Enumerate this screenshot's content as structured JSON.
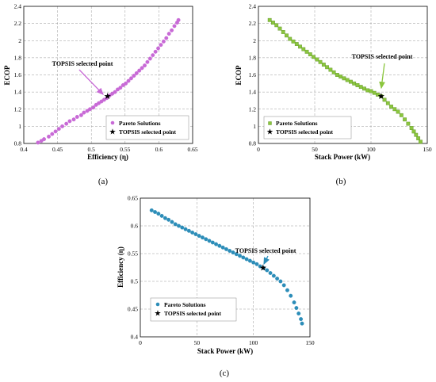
{
  "colors": {
    "a": "#c86ad6",
    "b": "#8bc63e",
    "c": "#2c8db8"
  },
  "chart_data": [
    {
      "type": "scatter",
      "panel_label": "(a)",
      "xlabel": "Efficiency (η)",
      "ylabel": "ECOP",
      "xlim": [
        0.4,
        0.65
      ],
      "ylim": [
        0.8,
        2.4
      ],
      "xticks": [
        "0.4",
        "0.45",
        "0.5",
        "0.55",
        "0.6",
        "0.65"
      ],
      "yticks": [
        "0.8",
        "1",
        "1.2",
        "1.4",
        "1.6",
        "1.8",
        "2",
        "2.2",
        "2.4"
      ],
      "grid": true,
      "legend_position": "lower-right",
      "annotation": "TOPSIS selected point",
      "series": [
        {
          "name": "Pareto Solutions",
          "marker": "circle",
          "color": "#c86ad6",
          "x": [
            0.421,
            0.426,
            0.43,
            0.437,
            0.442,
            0.447,
            0.452,
            0.457,
            0.463,
            0.468,
            0.474,
            0.479,
            0.485,
            0.489,
            0.494,
            0.498,
            0.503,
            0.507,
            0.511,
            0.515,
            0.519,
            0.523,
            0.527,
            0.531,
            0.535,
            0.539,
            0.543,
            0.547,
            0.551,
            0.555,
            0.559,
            0.563,
            0.567,
            0.571,
            0.575,
            0.579,
            0.583,
            0.587,
            0.591,
            0.595,
            0.599,
            0.603,
            0.607,
            0.611,
            0.615,
            0.619,
            0.623,
            0.627,
            0.629
          ],
          "y": [
            0.81,
            0.83,
            0.85,
            0.88,
            0.91,
            0.94,
            0.97,
            1.0,
            1.03,
            1.06,
            1.08,
            1.11,
            1.13,
            1.16,
            1.18,
            1.2,
            1.22,
            1.25,
            1.27,
            1.29,
            1.31,
            1.33,
            1.36,
            1.38,
            1.4,
            1.43,
            1.45,
            1.48,
            1.5,
            1.53,
            1.56,
            1.59,
            1.62,
            1.65,
            1.68,
            1.71,
            1.75,
            1.79,
            1.83,
            1.87,
            1.91,
            1.95,
            1.99,
            2.03,
            2.08,
            2.12,
            2.17,
            2.21,
            2.24
          ]
        },
        {
          "name": "TOPSIS selected point",
          "marker": "star",
          "color": "#000000",
          "x": [
            0.524
          ],
          "y": [
            1.35
          ]
        }
      ]
    },
    {
      "type": "scatter",
      "panel_label": "(b)",
      "xlabel": "Stack Power (kW)",
      "ylabel": "ECOP",
      "xlim": [
        0,
        150
      ],
      "ylim": [
        0.8,
        2.4
      ],
      "xticks": [
        "0",
        "50",
        "100",
        "150"
      ],
      "yticks": [
        "0.8",
        "1",
        "1.2",
        "1.4",
        "1.6",
        "1.8",
        "2",
        "2.2",
        "2.4"
      ],
      "grid": true,
      "legend_position": "lower-right",
      "annotation": "TOPSIS selected point",
      "series": [
        {
          "name": "Pareto Solutions",
          "marker": "square",
          "color": "#8bc63e",
          "x": [
            10,
            13,
            16,
            19,
            22,
            25,
            28,
            31,
            34,
            37,
            40,
            43,
            46,
            49,
            52,
            55,
            58,
            61,
            64,
            67,
            70,
            73,
            76,
            79,
            82,
            85,
            88,
            91,
            94,
            97,
            100,
            103,
            106,
            109,
            112,
            115,
            118,
            121,
            124,
            127,
            130,
            133,
            136,
            138,
            140,
            142,
            144
          ],
          "y": [
            2.24,
            2.21,
            2.18,
            2.14,
            2.1,
            2.06,
            2.02,
            1.99,
            1.96,
            1.93,
            1.9,
            1.87,
            1.84,
            1.81,
            1.78,
            1.75,
            1.72,
            1.69,
            1.66,
            1.63,
            1.6,
            1.58,
            1.56,
            1.54,
            1.52,
            1.5,
            1.48,
            1.46,
            1.44,
            1.42,
            1.41,
            1.39,
            1.37,
            1.35,
            1.31,
            1.27,
            1.23,
            1.2,
            1.17,
            1.13,
            1.08,
            1.03,
            0.98,
            0.94,
            0.9,
            0.86,
            0.82
          ]
        },
        {
          "name": "TOPSIS selected point",
          "marker": "star",
          "color": "#000000",
          "x": [
            109
          ],
          "y": [
            1.35
          ]
        }
      ]
    },
    {
      "type": "scatter",
      "panel_label": "(c)",
      "xlabel": "Stack Power (kW)",
      "ylabel": "Efficiency (η)",
      "xlim": [
        0,
        150
      ],
      "ylim": [
        0.4,
        0.65
      ],
      "xticks": [
        "0",
        "50",
        "100",
        "150"
      ],
      "yticks": [
        "0.4",
        "0.45",
        "0.5",
        "0.55",
        "0.6",
        "0.65"
      ],
      "grid": true,
      "legend_position": "lower-left",
      "annotation": "TOPSIS selected point",
      "series": [
        {
          "name": "Pareto Solutions",
          "marker": "circle",
          "color": "#2c8db8",
          "x": [
            10,
            13,
            16,
            19,
            22,
            25,
            28,
            31,
            34,
            37,
            40,
            43,
            46,
            49,
            52,
            55,
            58,
            61,
            64,
            67,
            70,
            73,
            76,
            79,
            82,
            85,
            88,
            91,
            94,
            97,
            100,
            103,
            106,
            109,
            112,
            115,
            118,
            121,
            124,
            127,
            130,
            133,
            136,
            138,
            140,
            142,
            143
          ],
          "y": [
            0.628,
            0.625,
            0.622,
            0.618,
            0.614,
            0.611,
            0.607,
            0.603,
            0.6,
            0.597,
            0.594,
            0.591,
            0.588,
            0.585,
            0.582,
            0.579,
            0.576,
            0.573,
            0.57,
            0.567,
            0.564,
            0.561,
            0.558,
            0.555,
            0.552,
            0.549,
            0.546,
            0.543,
            0.54,
            0.537,
            0.534,
            0.531,
            0.527,
            0.524,
            0.52,
            0.515,
            0.51,
            0.505,
            0.5,
            0.493,
            0.484,
            0.474,
            0.462,
            0.452,
            0.442,
            0.432,
            0.424
          ]
        },
        {
          "name": "TOPSIS selected point",
          "marker": "star",
          "color": "#000000",
          "x": [
            108.5
          ],
          "y": [
            0.524
          ]
        }
      ]
    }
  ]
}
